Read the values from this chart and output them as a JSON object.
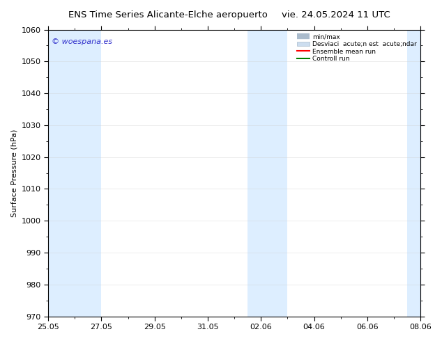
{
  "title": "ENS Time Series Alicante-Elche aeropuerto",
  "title_right": "vie. 24.05.2024 11 UTC",
  "ylabel": "Surface Pressure (hPa)",
  "ylim": [
    970,
    1060
  ],
  "yticks": [
    970,
    980,
    990,
    1000,
    1010,
    1020,
    1030,
    1040,
    1050,
    1060
  ],
  "xtick_labels": [
    "25.05",
    "27.05",
    "29.05",
    "31.05",
    "02.06",
    "04.06",
    "06.06",
    "08.06"
  ],
  "watermark": "© woespana.es",
  "legend_entries": [
    "min/max",
    "Desviaci  acute;n est  acute;ndar",
    "Ensemble mean run",
    "Controll run"
  ],
  "background_color": "#ffffff",
  "plot_bg_color": "#ffffff",
  "shaded_band_color": "#ddeeff",
  "ensemble_mean_color": "#ff0000",
  "control_run_color": "#008000",
  "fig_width": 6.34,
  "fig_height": 4.9,
  "dpi": 100
}
